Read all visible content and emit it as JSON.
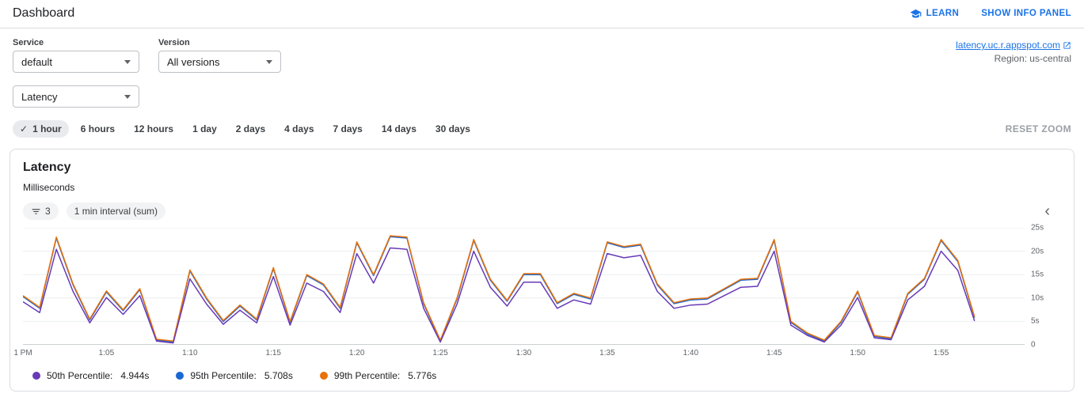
{
  "header": {
    "title": "Dashboard",
    "learn": "LEARN",
    "show_info_panel": "SHOW INFO PANEL"
  },
  "filters": {
    "service_label": "Service",
    "service_value": "default",
    "version_label": "Version",
    "version_value": "All versions",
    "metric_value": "Latency",
    "app_link_text": "latency.uc.r.appspot.com",
    "region_text": "Region: us-central"
  },
  "time_ranges": {
    "options": [
      "1 hour",
      "6 hours",
      "12 hours",
      "1 day",
      "2 days",
      "4 days",
      "7 days",
      "14 days",
      "30 days"
    ],
    "selected": "1 hour",
    "reset_zoom": "RESET ZOOM"
  },
  "icons": {
    "check": "✓",
    "chevron_left": "‹"
  },
  "chart_card": {
    "title": "Latency",
    "subtitle": "Milliseconds",
    "filter_count": "3",
    "interval_label": "1 min interval (sum)",
    "legend": [
      {
        "label": "50th Percentile:",
        "value": "4.944s",
        "color": "#673ab7"
      },
      {
        "label": "95th Percentile:",
        "value": "5.708s",
        "color": "#1967d2"
      },
      {
        "label": "99th Percentile:",
        "value": "5.776s",
        "color": "#e8710a"
      }
    ]
  },
  "chart_data": {
    "type": "line",
    "title": "Latency",
    "ylabel": "Milliseconds",
    "x_start": "1:00 PM",
    "x_interval_minutes": 1,
    "xlim": [
      0,
      60
    ],
    "ylim": [
      0,
      25
    ],
    "grid": true,
    "legend_position": "bottom",
    "x_tick_positions": [
      0,
      5,
      10,
      15,
      20,
      25,
      30,
      35,
      40,
      45,
      50,
      55
    ],
    "x_tick_labels": [
      "1 PM",
      "1:05",
      "1:10",
      "1:15",
      "1:20",
      "1:25",
      "1:30",
      "1:35",
      "1:40",
      "1:45",
      "1:50",
      "1:55"
    ],
    "y_ticks": [
      0,
      5,
      10,
      15,
      20,
      25
    ],
    "y_tick_labels": [
      "0",
      "5s",
      "10s",
      "15s",
      "20s",
      "25s"
    ],
    "draw_order": [
      1,
      2,
      0
    ],
    "series": [
      {
        "name": "50th Percentile",
        "color": "#673ab7",
        "values": [
          9.2,
          6.9,
          20.4,
          11.4,
          4.7,
          10.1,
          6.5,
          10.5,
          0.8,
          0.4,
          14.1,
          8.7,
          4.4,
          7.4,
          4.7,
          14.6,
          4.2,
          13.2,
          11.4,
          6.9,
          19.5,
          13.2,
          20.7,
          20.4,
          7.8,
          0.6,
          8.7,
          20,
          12.3,
          8.3,
          13.4,
          13.4,
          7.8,
          9.6,
          8.7,
          19.5,
          18.6,
          19.1,
          11.4,
          7.8,
          8.5,
          8.7,
          10.5,
          12.3,
          12.5,
          20,
          4.2,
          2,
          0.6,
          4.2,
          10.1,
          1.5,
          1.1,
          9.6,
          12.5,
          20,
          15.9,
          5.1
        ]
      },
      {
        "name": "95th Percentile",
        "color": "#1967d2",
        "values": [
          10.3,
          7.8,
          22.8,
          12.8,
          5.3,
          11.3,
          7.3,
          11.8,
          1,
          0.6,
          15.8,
          9.8,
          5,
          8.3,
          5.3,
          16.3,
          4.8,
          14.8,
          12.8,
          7.8,
          21.8,
          14.8,
          23.1,
          22.8,
          8.8,
          0.8,
          9.8,
          22.3,
          13.8,
          9.3,
          15,
          15,
          8.8,
          10.8,
          9.8,
          21.8,
          20.8,
          21.3,
          12.8,
          8.8,
          9.6,
          9.8,
          11.8,
          13.8,
          14,
          22.3,
          4.8,
          2.3,
          0.8,
          4.8,
          11.3,
          1.8,
          1.3,
          10.8,
          14,
          22.3,
          17.8,
          5.8
        ]
      },
      {
        "name": "99th Percentile",
        "color": "#e8710a",
        "values": [
          10.5,
          8,
          23,
          13,
          5.5,
          11.5,
          7.5,
          12,
          1.2,
          0.8,
          16,
          10,
          5.2,
          8.5,
          5.5,
          16.5,
          5,
          15,
          13,
          8,
          22,
          15,
          23.3,
          23,
          9,
          1,
          10,
          22.5,
          14,
          9.5,
          15.2,
          15.2,
          9,
          11,
          10,
          22,
          21,
          21.5,
          13,
          9,
          9.8,
          10,
          12,
          14,
          14.2,
          22.5,
          5,
          2.5,
          1,
          5,
          11.5,
          2,
          1.5,
          11,
          14.2,
          22.5,
          18,
          6
        ]
      }
    ]
  }
}
